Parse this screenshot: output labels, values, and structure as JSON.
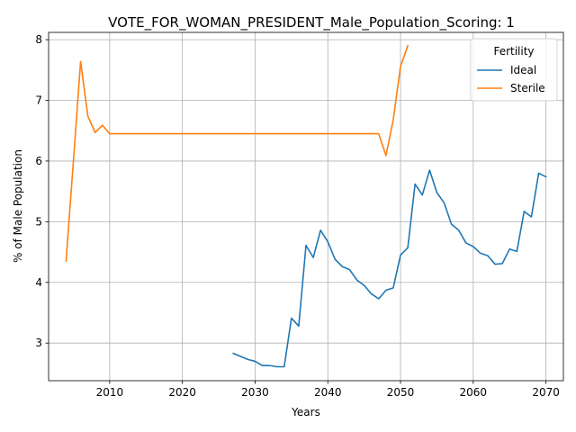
{
  "chart_data": {
    "type": "line",
    "title": "VOTE_FOR_WOMAN_PRESIDENT_Male_Population_Scoring: 1",
    "xlabel": "Years",
    "ylabel": "% of Male Population",
    "xlim": [
      2001.6,
      2072.4
    ],
    "ylim": [
      2.38,
      8.12
    ],
    "xticks": [
      2010,
      2020,
      2030,
      2040,
      2050,
      2060,
      2070
    ],
    "yticks": [
      3,
      4,
      5,
      6,
      7,
      8
    ],
    "grid": true,
    "legend": {
      "title": "Fertility",
      "placement": "top-right"
    },
    "series": [
      {
        "name": "Ideal",
        "color": "#1f77b4",
        "x": [
          2027,
          2028,
          2029,
          2030,
          2031,
          2032,
          2033,
          2034,
          2035,
          2036,
          2037,
          2038,
          2039,
          2040,
          2041,
          2042,
          2043,
          2044,
          2045,
          2046,
          2047,
          2048,
          2049,
          2050,
          2051,
          2052,
          2053,
          2054,
          2055,
          2056,
          2057,
          2058,
          2059,
          2060,
          2061,
          2062,
          2063,
          2064,
          2065,
          2066,
          2067,
          2068,
          2069,
          2070
        ],
        "y": [
          2.83,
          2.78,
          2.73,
          2.7,
          2.63,
          2.63,
          2.61,
          2.61,
          3.41,
          3.28,
          4.61,
          4.41,
          4.86,
          4.67,
          4.38,
          4.26,
          4.21,
          4.04,
          3.95,
          3.81,
          3.73,
          3.87,
          3.91,
          4.45,
          4.57,
          5.62,
          5.44,
          5.85,
          5.48,
          5.31,
          4.96,
          4.86,
          4.65,
          4.59,
          4.48,
          4.44,
          4.3,
          4.31,
          4.55,
          4.51,
          5.17,
          5.08,
          5.8,
          5.74
        ]
      },
      {
        "name": "Sterile",
        "color": "#ff7f0e",
        "x": [
          2004,
          2005,
          2006,
          2007,
          2008,
          2009,
          2010,
          2011,
          2012,
          2013,
          2014,
          2015,
          2016,
          2017,
          2018,
          2019,
          2020,
          2021,
          2022,
          2023,
          2024,
          2025,
          2026,
          2027,
          2028,
          2029,
          2030,
          2031,
          2032,
          2033,
          2034,
          2035,
          2036,
          2037,
          2038,
          2039,
          2040,
          2041,
          2042,
          2043,
          2044,
          2045,
          2046,
          2047,
          2048,
          2049,
          2050,
          2051
        ],
        "y": [
          4.35,
          5.98,
          7.64,
          6.74,
          6.47,
          6.59,
          6.45,
          6.45,
          6.45,
          6.45,
          6.45,
          6.45,
          6.45,
          6.45,
          6.45,
          6.45,
          6.45,
          6.45,
          6.45,
          6.45,
          6.45,
          6.45,
          6.45,
          6.45,
          6.45,
          6.45,
          6.45,
          6.45,
          6.45,
          6.45,
          6.45,
          6.45,
          6.45,
          6.45,
          6.45,
          6.45,
          6.45,
          6.45,
          6.45,
          6.45,
          6.45,
          6.45,
          6.45,
          6.45,
          6.09,
          6.68,
          7.56,
          7.9
        ]
      }
    ]
  }
}
